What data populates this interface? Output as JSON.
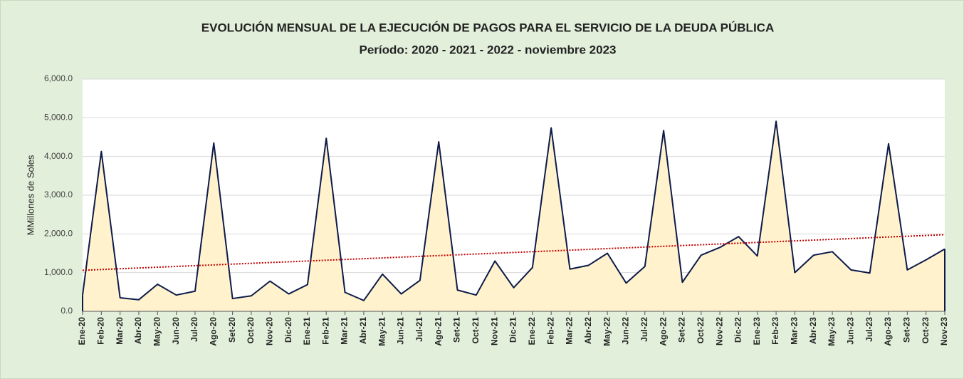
{
  "chart_data": {
    "type": "area",
    "title": "EVOLUCIÓN MENSUAL DE LA EJECUCIÓN DE PAGOS PARA EL SERVICIO DE LA DEUDA PÚBLICA",
    "subtitle": "Período: 2020 - 2021 - 2022 - noviembre 2023",
    "y_label": "MMillones de Soles",
    "categories": [
      "Ene-20",
      "Feb-20",
      "Mar-20",
      "Abr-20",
      "May-20",
      "Jun-20",
      "Jul-20",
      "Ago-20",
      "Set-20",
      "Oct-20",
      "Nov-20",
      "Dic-20",
      "Ene-21",
      "Feb-21",
      "Mar-21",
      "Abr-21",
      "May-21",
      "Jun-21",
      "Jul-21",
      "Ago-21",
      "Set-21",
      "Oct-21",
      "Nov-21",
      "Dic-21",
      "Ene-22",
      "Feb-22",
      "Mar-22",
      "Abr-22",
      "May-22",
      "Jun-22",
      "Jul-22",
      "Ago-22",
      "Set-22",
      "Oct-22",
      "Nov-22",
      "Dic-22",
      "Ene-23",
      "Feb-23",
      "Mar-23",
      "Abr-23",
      "May-23",
      "Jun-23",
      "Jul-23",
      "Ago-23",
      "Set-23",
      "Oct-23",
      "Nov-23"
    ],
    "values": [
      420,
      4130,
      350,
      300,
      700,
      420,
      520,
      4350,
      330,
      400,
      780,
      450,
      690,
      4470,
      490,
      280,
      960,
      450,
      800,
      4380,
      550,
      420,
      1300,
      610,
      1130,
      4740,
      1090,
      1190,
      1500,
      730,
      1160,
      4670,
      750,
      1450,
      1650,
      1930,
      1430,
      4910,
      1000,
      1450,
      1540,
      1070,
      990,
      4330,
      1070,
      1330,
      1610
    ],
    "color": "#0d1b4a",
    "area_color": "#fff2cc",
    "trendline": {
      "values": [
        1060,
        1980
      ],
      "color": "#c00000",
      "dashed": true
    },
    "ylim": [
      0,
      6000
    ],
    "yticks": [
      {
        "value": 0,
        "label": "0.0"
      },
      {
        "value": 1000,
        "label": "1,000.0"
      },
      {
        "value": 2000,
        "label": "2,000.0"
      },
      {
        "value": 3000,
        "label": "3,000.0"
      },
      {
        "value": 4000,
        "label": "4,000.0"
      },
      {
        "value": 5000,
        "label": "5,000.0"
      },
      {
        "value": 6000,
        "label": "6,000.0"
      }
    ],
    "grid": true
  }
}
